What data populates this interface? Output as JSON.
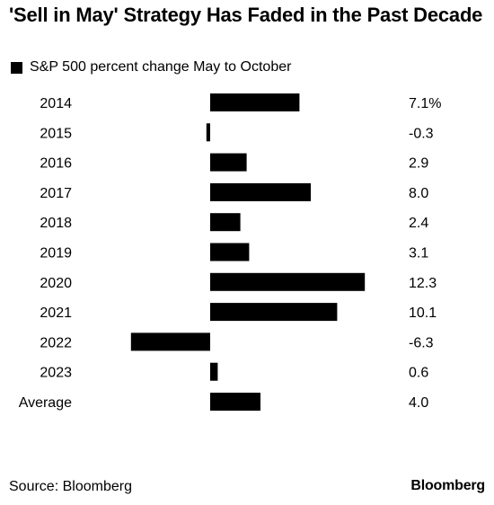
{
  "header": {
    "title": "'Sell in May' Strategy Has Faded in the Past Decade"
  },
  "legend": {
    "label": "S&P 500 percent change May to October"
  },
  "footer": {
    "source": "Source: Bloomberg",
    "brand": "Bloomberg"
  },
  "chart_data": {
    "type": "bar",
    "orientation": "horizontal",
    "title": "'Sell in May' Strategy Has Faded in the Past Decade",
    "categories": [
      "2014",
      "2015",
      "2016",
      "2017",
      "2018",
      "2019",
      "2020",
      "2021",
      "2022",
      "2023",
      "Average"
    ],
    "series": [
      {
        "name": "S&P 500 percent change May to October",
        "values": [
          7.1,
          -0.3,
          2.9,
          8.0,
          2.4,
          3.1,
          12.3,
          10.1,
          -6.3,
          0.6,
          4.0
        ],
        "labels": [
          "7.1%",
          "-0.3",
          "2.9",
          "8.0",
          "2.4",
          "3.1",
          "12.3",
          "10.1",
          "-6.3",
          "0.6",
          "4.0"
        ]
      }
    ],
    "xlim": [
      -6.3,
      12.3
    ],
    "grid": false,
    "legend": "top-left",
    "bar_color": "#000000"
  }
}
